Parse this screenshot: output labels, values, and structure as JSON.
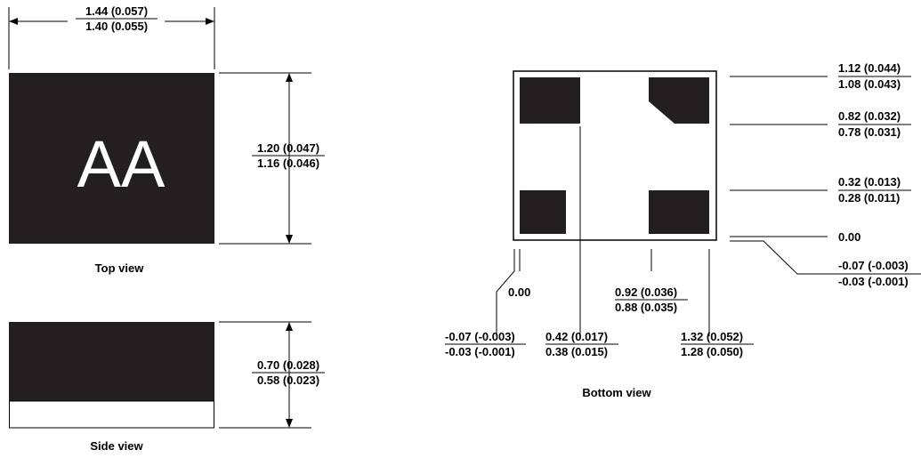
{
  "top_view": {
    "marking": "AA",
    "caption": "Top view",
    "width_dim": {
      "max": "1.44 (0.057)",
      "min": "1.40 (0.055)"
    },
    "height_dim": {
      "max": "1.20 (0.047)",
      "min": "1.16 (0.046)"
    }
  },
  "side_view": {
    "caption": "Side view",
    "height_dim": {
      "max": "0.70 (0.028)",
      "min": "0.58 (0.023)"
    }
  },
  "bottom_view": {
    "caption": "Bottom view",
    "right_dims": [
      {
        "max": "1.12 (0.044)",
        "min": "1.08 (0.043)"
      },
      {
        "max": "0.82 (0.032)",
        "min": "0.78 (0.031)"
      },
      {
        "max": "0.32 (0.013)",
        "min": "0.28 (0.011)"
      },
      {
        "single": "0.00"
      },
      {
        "max": "-0.07 (-0.003)",
        "min": "-0.03 (-0.001)"
      }
    ],
    "bottom_dims": [
      {
        "single": "0.00"
      },
      {
        "max": "-0.07 (-0.003)",
        "min": "-0.03 (-0.001)"
      },
      {
        "max": "0.42 (0.017)",
        "min": "0.38 (0.015)"
      },
      {
        "max": "0.92 (0.036)",
        "min": "0.88 (0.035)"
      },
      {
        "max": "1.32 (0.052)",
        "min": "1.28 (0.050)"
      }
    ]
  },
  "colors": {
    "body": "#231f20",
    "line": "#000000",
    "background": "#ffffff"
  }
}
